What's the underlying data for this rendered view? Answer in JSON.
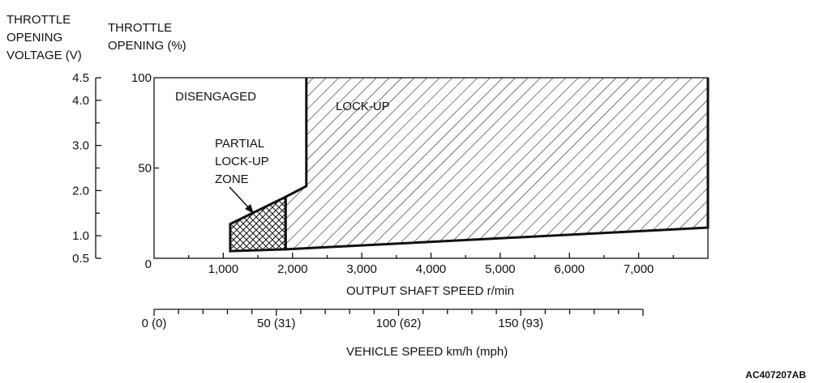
{
  "axes": {
    "voltage": {
      "title_lines": [
        "THROTTLE",
        "OPENING",
        "VOLTAGE (V)"
      ],
      "ticks": [
        {
          "value": 4.5,
          "label": "4.5"
        },
        {
          "value": 4.0,
          "label": "4.0"
        },
        {
          "value": 3.0,
          "label": "3.0"
        },
        {
          "value": 2.0,
          "label": "2.0"
        },
        {
          "value": 1.0,
          "label": "1.0"
        },
        {
          "value": 0.5,
          "label": "0.5"
        }
      ],
      "minor_ticks": [
        3.5,
        2.5,
        1.5
      ]
    },
    "opening": {
      "title_lines": [
        "THROTTLE",
        "OPENING (%)"
      ],
      "range": [
        0,
        100
      ],
      "ticks": [
        {
          "value": 100,
          "label": "100"
        },
        {
          "value": 50,
          "label": "50"
        },
        {
          "value": 0,
          "label": "0"
        }
      ]
    },
    "shaft_speed": {
      "label": "OUTPUT SHAFT SPEED r/min",
      "unit_range": [
        0,
        8000
      ],
      "ticks": [
        {
          "value": 1000,
          "label": "1,000"
        },
        {
          "value": 2000,
          "label": "2,000"
        },
        {
          "value": 3000,
          "label": "3,000"
        },
        {
          "value": 4000,
          "label": "4,000"
        },
        {
          "value": 5000,
          "label": "5,000"
        },
        {
          "value": 6000,
          "label": "6,000"
        },
        {
          "value": 7000,
          "label": "7,000"
        }
      ]
    },
    "vehicle_speed": {
      "label": "VEHICLE SPEED km/h (mph)",
      "unit_range": [
        0,
        200
      ],
      "minor_tick_step": 10,
      "ticks": [
        {
          "value": 0,
          "label": "0 (0)"
        },
        {
          "value": 50,
          "label": "50 (31)"
        },
        {
          "value": 100,
          "label": "100 (62)"
        },
        {
          "value": 150,
          "label": "150 (93)"
        }
      ]
    }
  },
  "zones": {
    "disengaged": {
      "label": "DISENGAGED"
    },
    "lockup": {
      "label": "LOCK-UP",
      "boundary": [
        [
          2200,
          100
        ],
        [
          2200,
          40
        ],
        [
          1900,
          34
        ],
        [
          1900,
          5
        ],
        [
          8000,
          17
        ],
        [
          8000,
          100
        ]
      ]
    },
    "partial": {
      "label_lines": [
        "PARTIAL",
        "LOCK-UP",
        "ZONE"
      ],
      "boundary": [
        [
          1100,
          19
        ],
        [
          1900,
          34
        ],
        [
          1900,
          5
        ],
        [
          1100,
          4
        ]
      ]
    }
  },
  "diagram_code": "AC407207AB"
}
